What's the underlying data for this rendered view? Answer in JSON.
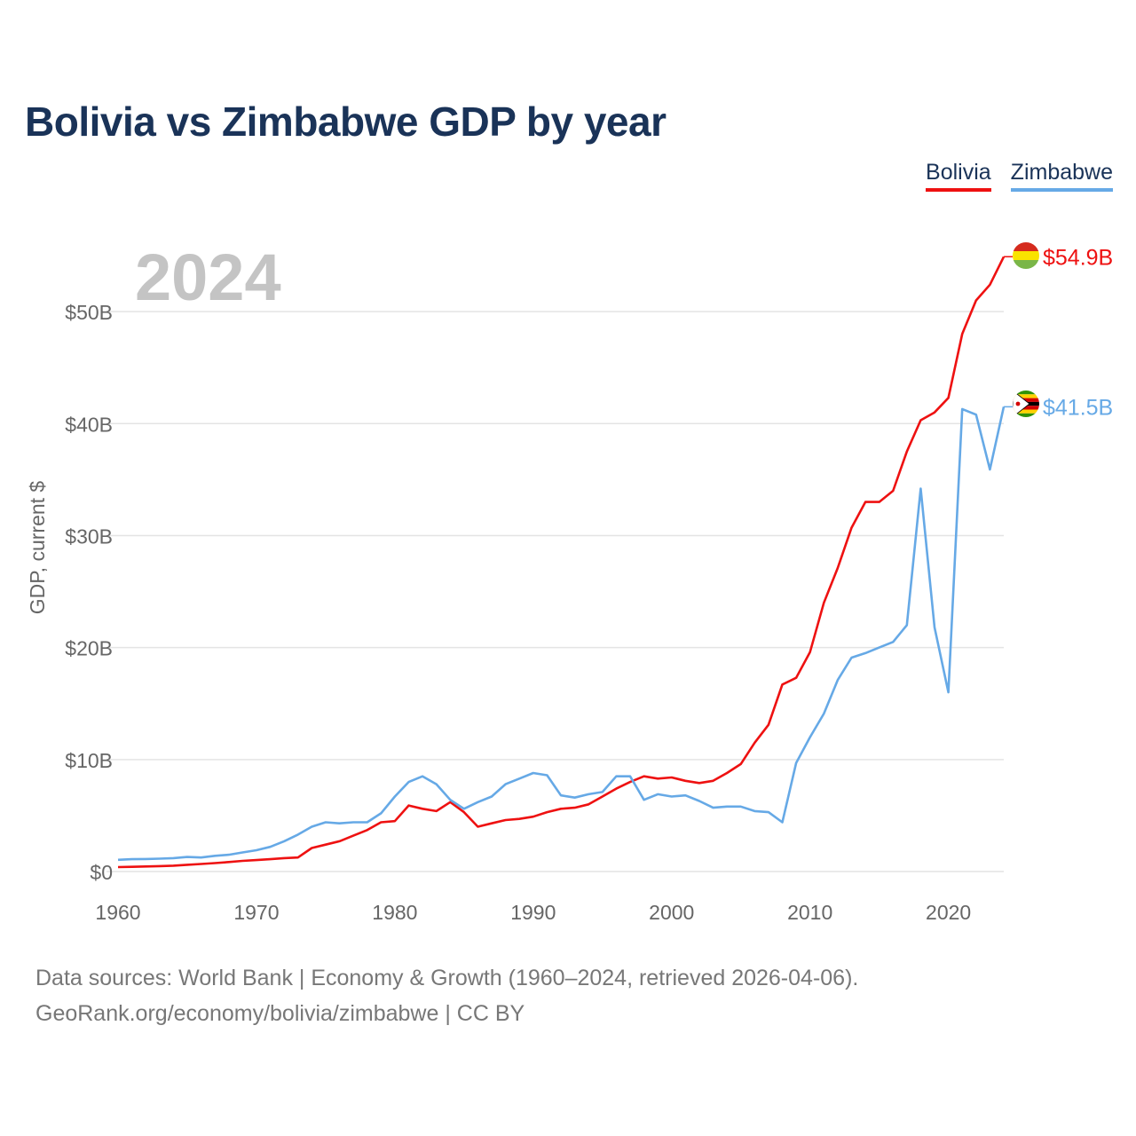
{
  "title": "Bolivia vs Zimbabwe GDP by year",
  "legend": {
    "items": [
      "Bolivia",
      "Zimbabwe"
    ]
  },
  "year_label": "2024",
  "footer": {
    "line1": "Data sources: World Bank | Economy & Growth (1960–2024, retrieved 2026-04-06).",
    "line2": "GeoRank.org/economy/bolivia/zimbabwe | CC BY"
  },
  "chart_data": {
    "type": "line",
    "title": "Bolivia vs Zimbabwe GDP by year",
    "xlabel": "",
    "ylabel": "GDP, current $",
    "xlim": [
      1960,
      2024
    ],
    "ylim": [
      0,
      55
    ],
    "units": "billion US$",
    "grid": true,
    "legend": "top-right",
    "x_ticks": [
      1960,
      1970,
      1980,
      1990,
      2000,
      2010,
      2020
    ],
    "x_tick_labels": [
      "1960",
      "1970",
      "1980",
      "1990",
      "2000",
      "2010",
      "2020"
    ],
    "y_ticks": [
      0,
      10,
      20,
      30,
      40,
      50
    ],
    "y_tick_labels": [
      "$0",
      "$10B",
      "$20B",
      "$30B",
      "$40B",
      "$50B"
    ],
    "x": [
      1960,
      1961,
      1962,
      1963,
      1964,
      1965,
      1966,
      1967,
      1968,
      1969,
      1970,
      1971,
      1972,
      1973,
      1974,
      1975,
      1976,
      1977,
      1978,
      1979,
      1980,
      1981,
      1982,
      1983,
      1984,
      1985,
      1986,
      1987,
      1988,
      1989,
      1990,
      1991,
      1992,
      1993,
      1994,
      1995,
      1996,
      1997,
      1998,
      1999,
      2000,
      2001,
      2002,
      2003,
      2004,
      2005,
      2006,
      2007,
      2008,
      2009,
      2010,
      2011,
      2012,
      2013,
      2014,
      2015,
      2016,
      2017,
      2018,
      2019,
      2020,
      2021,
      2022,
      2023,
      2024
    ],
    "series": [
      {
        "name": "Bolivia",
        "color": "#ee1111",
        "end_label": "$54.9B",
        "values": [
          0.4,
          0.42,
          0.45,
          0.48,
          0.52,
          0.6,
          0.67,
          0.75,
          0.85,
          0.95,
          1.02,
          1.1,
          1.2,
          1.25,
          2.1,
          2.4,
          2.7,
          3.2,
          3.7,
          4.4,
          4.5,
          5.9,
          5.6,
          5.4,
          6.2,
          5.3,
          4.0,
          4.3,
          4.6,
          4.7,
          4.9,
          5.3,
          5.6,
          5.7,
          6.0,
          6.7,
          7.4,
          8.0,
          8.5,
          8.3,
          8.4,
          8.1,
          7.9,
          8.1,
          8.8,
          9.6,
          11.5,
          13.1,
          16.7,
          17.3,
          19.6,
          24.0,
          27.1,
          30.7,
          33.0,
          33.0,
          34.0,
          37.5,
          40.3,
          41.0,
          42.3,
          48.0,
          51.0,
          52.4,
          54.9
        ]
      },
      {
        "name": "Zimbabwe",
        "color": "#66a9e6",
        "end_label": "$41.5B",
        "values": [
          1.05,
          1.1,
          1.12,
          1.15,
          1.2,
          1.3,
          1.25,
          1.4,
          1.5,
          1.7,
          1.9,
          2.2,
          2.7,
          3.3,
          4.0,
          4.4,
          4.3,
          4.4,
          4.4,
          5.2,
          6.7,
          8.0,
          8.5,
          7.8,
          6.4,
          5.6,
          6.2,
          6.7,
          7.8,
          8.3,
          8.8,
          8.6,
          6.8,
          6.6,
          6.9,
          7.1,
          8.5,
          8.5,
          6.4,
          6.9,
          6.7,
          6.8,
          6.3,
          5.7,
          5.8,
          5.8,
          5.4,
          5.3,
          4.4,
          9.7,
          12.0,
          14.1,
          17.1,
          19.1,
          19.5,
          20.0,
          20.5,
          22.0,
          34.2,
          21.8,
          16.0,
          41.3,
          40.8,
          35.9,
          41.5
        ]
      }
    ]
  }
}
